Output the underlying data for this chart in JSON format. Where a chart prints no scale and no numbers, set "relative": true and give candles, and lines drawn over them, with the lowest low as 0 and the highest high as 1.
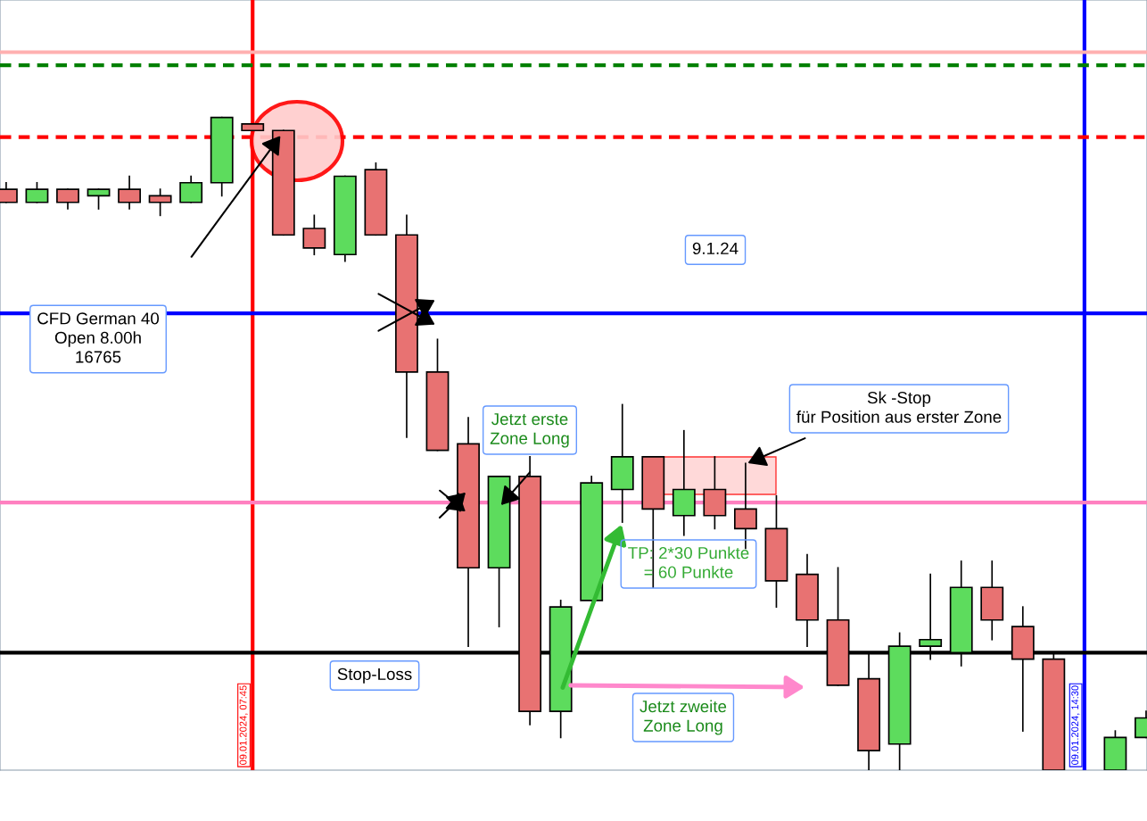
{
  "chart_data": {
    "type": "candlestick",
    "relative": true,
    "tick_labels": "x",
    "categories": [
      null,
      null,
      null,
      null,
      null,
      null,
      null,
      null,
      "09.01.2024, 07:45",
      null,
      null,
      null,
      null,
      null,
      null,
      null,
      null,
      null,
      null,
      null,
      null,
      null,
      null,
      null,
      null,
      null,
      null,
      null,
      null,
      null,
      null,
      null,
      null,
      null,
      null,
      "09.01.2024, 14:30",
      null,
      null
    ],
    "ohlc": [
      [
        0.89,
        0.9,
        0.87,
        0.87
      ],
      [
        0.87,
        0.9,
        0.87,
        0.89
      ],
      [
        0.89,
        0.89,
        0.86,
        0.87
      ],
      [
        0.88,
        0.89,
        0.86,
        0.89
      ],
      [
        0.89,
        0.91,
        0.86,
        0.87
      ],
      [
        0.88,
        0.89,
        0.85,
        0.87
      ],
      [
        0.87,
        0.91,
        0.87,
        0.9
      ],
      [
        0.9,
        1.0,
        0.88,
        1.0
      ],
      [
        0.99,
        0.99,
        0.98,
        0.98
      ],
      [
        0.98,
        0.98,
        0.82,
        0.82
      ],
      [
        0.83,
        0.85,
        0.79,
        0.8
      ],
      [
        0.79,
        0.91,
        0.78,
        0.91
      ],
      [
        0.92,
        0.93,
        0.82,
        0.82
      ],
      [
        0.82,
        0.85,
        0.51,
        0.61
      ],
      [
        0.61,
        0.66,
        0.49,
        0.49
      ],
      [
        0.5,
        0.54,
        0.19,
        0.31
      ],
      [
        0.31,
        0.45,
        0.22,
        0.45
      ],
      [
        0.45,
        0.48,
        0.07,
        0.09
      ],
      [
        0.09,
        0.26,
        0.05,
        0.25
      ],
      [
        0.26,
        0.45,
        0.26,
        0.44
      ],
      [
        0.43,
        0.56,
        0.38,
        0.48
      ],
      [
        0.48,
        0.48,
        0.28,
        0.4
      ],
      [
        0.39,
        0.52,
        0.36,
        0.43
      ],
      [
        0.43,
        0.48,
        0.37,
        0.39
      ],
      [
        0.4,
        0.47,
        0.34,
        0.37
      ],
      [
        0.37,
        0.42,
        0.25,
        0.29
      ],
      [
        0.3,
        0.33,
        0.19,
        0.23
      ],
      [
        0.23,
        0.31,
        0.13,
        0.13
      ],
      [
        0.14,
        0.18,
        0,
        0.03
      ],
      [
        0.04,
        0.21,
        0,
        0.19
      ],
      [
        0.19,
        0.3,
        0.17,
        0.2
      ],
      [
        0.18,
        0.32,
        0.16,
        0.28
      ],
      [
        0.28,
        0.32,
        0.2,
        0.23
      ],
      [
        0.22,
        0.25,
        0.06,
        0.17
      ],
      [
        0.17,
        0.18,
        0,
        0
      ],
      null,
      [
        0,
        0.06,
        0,
        0.05
      ],
      [
        0.05,
        0.09,
        0.05,
        0.08
      ]
    ],
    "colors": [
      "#e87272",
      "#5ddc5d",
      "#e87272",
      "#5ddc5d",
      "#e87272",
      "#e87272",
      "#5ddc5d",
      "#5ddc5d",
      "#e87272",
      "#e87272",
      "#e87272",
      "#5ddc5d",
      "#e87272",
      "#e87272",
      "#e87272",
      "#e87272",
      "#5ddc5d",
      "#e87272",
      "#5ddc5d",
      "#5ddc5d",
      "#5ddc5d",
      "#e87272",
      "#5ddc5d",
      "#e87272",
      "#e87272",
      "#e87272",
      "#e87272",
      "#e87272",
      "#e87272",
      "#5ddc5d",
      "#5ddc5d",
      "#5ddc5d",
      "#e87272",
      "#e87272",
      "#e87272",
      null,
      "#5ddc5d",
      "#5ddc5d"
    ],
    "ref_lines": [
      {
        "axis": "x",
        "value": "09.01.2024, 07:45",
        "color": "#ff0000",
        "line_style": "solid"
      },
      {
        "axis": "x",
        "value": "09.01.2024, 14:30",
        "color": "#0000ff",
        "line_style": "solid"
      },
      {
        "axis": "y",
        "value": 1.1,
        "color": "#ffb0b0",
        "line_style": "solid"
      },
      {
        "axis": "y",
        "value": 1.08,
        "color": "#008000",
        "line_style": "dashed"
      },
      {
        "axis": "y",
        "value": 0.97,
        "color": "#ff0000",
        "line_style": "dashed"
      },
      {
        "axis": "y",
        "value": 0.7,
        "color": "#0000ff",
        "line_style": "solid"
      },
      {
        "axis": "y",
        "value": 0.41,
        "color": "#ff80c0",
        "line_style": "solid"
      },
      {
        "axis": "y",
        "value": 0.18,
        "color": "#000000",
        "line_style": "solid"
      }
    ],
    "annotations": [
      "9.1.24",
      "CFD German 40\nOpen 8.00h\n16765",
      "Jetzt erste\nZone Long",
      "Sk -Stop\nfür Position aus erster Zone",
      {
        "text": "TP: 2*30 Punkte\n= 60 Punkte",
        "y": 0.38
      },
      "Stop-Loss",
      "Jetzt zweite\nZone Long"
    ]
  }
}
